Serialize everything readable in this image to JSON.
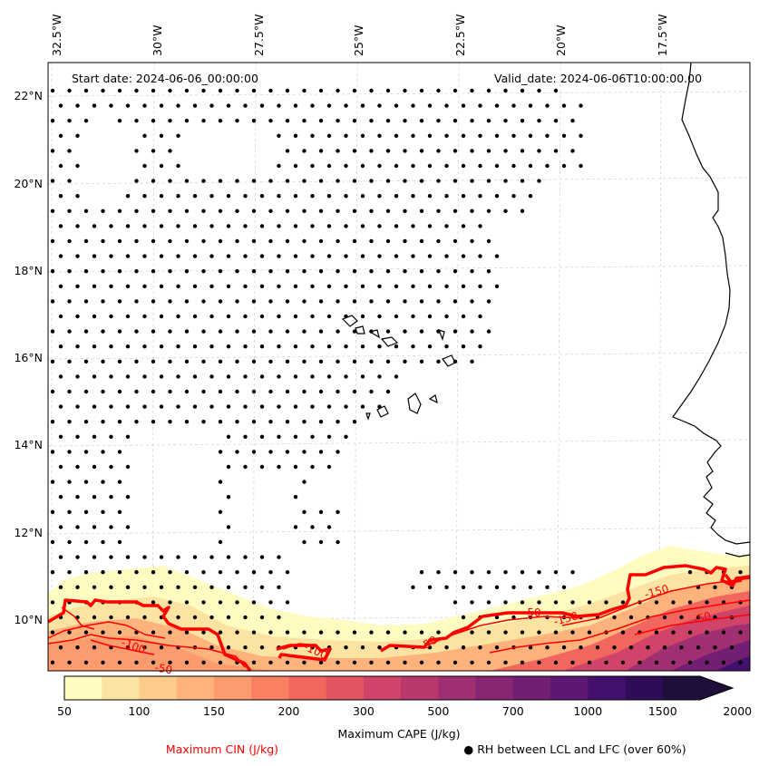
{
  "header": {
    "start_date": "Start date: 2024-06-06_00:00:00",
    "valid_date": "Valid_date: 2024-06-06T10:00:00.00"
  },
  "axes": {
    "lon_labels": [
      "32.5°W",
      "30°W",
      "27.5°W",
      "25°W",
      "22.5°W",
      "20°W",
      "17.5°W"
    ],
    "lat_labels": [
      "22°N",
      "20°N",
      "18°N",
      "16°N",
      "14°N",
      "12°N",
      "10°N"
    ],
    "lon_values": [
      -32.5,
      -30,
      -27.5,
      -25,
      -22.5,
      -20,
      -17.5
    ],
    "lat_values": [
      22,
      20,
      18,
      16,
      14,
      12,
      10
    ],
    "lon_range": [
      -33.5,
      -15.5
    ],
    "lat_range": [
      8.9,
      22.8
    ]
  },
  "colorbar": {
    "title": "Maximum CAPE (J/kg)",
    "tick_labels": [
      "50",
      "100",
      "150",
      "200",
      "300",
      "500",
      "700",
      "1000",
      "1500",
      "2000"
    ],
    "colors": [
      "#fefcc0",
      "#fde3a2",
      "#fdcb8a",
      "#fdb37b",
      "#fc9b6e",
      "#fa8062",
      "#f1665e",
      "#e25461",
      "#cf4468",
      "#b8386e",
      "#a02f72",
      "#892673",
      "#721f73",
      "#5c1872",
      "#44106e",
      "#2e0c57",
      "#1e0f3b"
    ],
    "extend": "max"
  },
  "legend": {
    "cin_label": "Maximum CIN (J/kg)",
    "rh_label": "● RH between LCL and LFC (over 60%)",
    "cin_color": "#ff0000"
  },
  "contour_labels": [
    "-50",
    "-100",
    "-150",
    "-50",
    "-150",
    "-50",
    "-100",
    "-50"
  ],
  "colors": {
    "dots": "#000000",
    "coastline": "#000000",
    "cin": "#ff0000"
  }
}
